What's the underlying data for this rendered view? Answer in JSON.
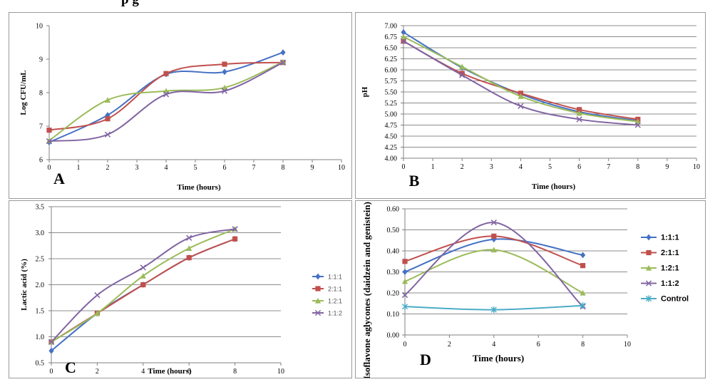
{
  "header": {
    "text": "p                                                        g"
  },
  "colors": {
    "s1": "#4471c4",
    "s2": "#c0504d",
    "s3": "#9bbb59",
    "s4": "#8064a2",
    "s5": "#4bacc6"
  },
  "chart_data": [
    {
      "type": "line",
      "letter": "A",
      "title": "",
      "xlabel": "Time (hours)",
      "ylabel": "Log CFU/mL",
      "xlim": [
        0,
        10
      ],
      "ylim": [
        6,
        10
      ],
      "xticks": [
        "0",
        "1",
        "2",
        "3",
        "4",
        "5",
        "6",
        "7",
        "8",
        "9",
        "10"
      ],
      "yticks": [
        "6",
        "7",
        "8",
        "9",
        "10"
      ],
      "grid": false,
      "legend": "none",
      "series": [
        {
          "color": "#4471c4",
          "marker": "diamond",
          "x": [
            0,
            2,
            4,
            6,
            8
          ],
          "y": [
            6.52,
            7.33,
            8.55,
            8.62,
            9.2
          ]
        },
        {
          "color": "#c0504d",
          "marker": "square",
          "x": [
            0,
            2,
            4,
            6,
            8
          ],
          "y": [
            6.88,
            7.22,
            8.57,
            8.85,
            8.9
          ]
        },
        {
          "color": "#9bbb59",
          "marker": "triangle",
          "x": [
            0,
            2,
            4,
            6,
            8
          ],
          "y": [
            6.57,
            7.78,
            8.05,
            8.15,
            8.92
          ]
        },
        {
          "color": "#8064a2",
          "marker": "x",
          "x": [
            0,
            2,
            4,
            6,
            8
          ],
          "y": [
            6.55,
            6.75,
            7.95,
            8.05,
            8.9
          ]
        }
      ]
    },
    {
      "type": "line",
      "letter": "B",
      "title": "",
      "xlabel": "Time (hours)",
      "ylabel": "pH",
      "xlim": [
        0,
        10
      ],
      "ylim": [
        4.0,
        7.0
      ],
      "xticks": [
        "0",
        "1",
        "2",
        "3",
        "4",
        "5",
        "6",
        "7",
        "8",
        "9",
        "10"
      ],
      "yticks": [
        "4.00",
        "4.25",
        "4.50",
        "4.75",
        "5.00",
        "5.25",
        "5.50",
        "5.75",
        "6.00",
        "6.25",
        "6.50",
        "6.75",
        "7.00"
      ],
      "grid": true,
      "legend": "none",
      "series": [
        {
          "color": "#4471c4",
          "marker": "diamond",
          "x": [
            0,
            2,
            4,
            6,
            8
          ],
          "y": [
            6.85,
            6.05,
            5.45,
            5.05,
            4.85
          ]
        },
        {
          "color": "#c0504d",
          "marker": "square",
          "x": [
            0,
            2,
            4,
            6,
            8
          ],
          "y": [
            6.65,
            5.92,
            5.47,
            5.1,
            4.88
          ]
        },
        {
          "color": "#9bbb59",
          "marker": "triangle",
          "x": [
            0,
            2,
            4,
            6,
            8
          ],
          "y": [
            6.75,
            6.07,
            5.4,
            5.02,
            4.83
          ]
        },
        {
          "color": "#8064a2",
          "marker": "x",
          "x": [
            0,
            2,
            4,
            6,
            8
          ],
          "y": [
            6.65,
            5.88,
            5.18,
            4.88,
            4.75
          ]
        }
      ]
    },
    {
      "type": "line",
      "letter": "C",
      "title": "",
      "xlabel": "Time (hours)",
      "ylabel": "Lactic acid (%)",
      "xlim": [
        0,
        10
      ],
      "ylim": [
        0.5,
        3.5
      ],
      "xticks": [
        "0",
        "2",
        "4",
        "6",
        "8",
        "10"
      ],
      "yticks": [
        "0.5",
        "1.0",
        "1.5",
        "2.0",
        "2.5",
        "3.0",
        "3.5"
      ],
      "grid": true,
      "legend": "right",
      "series": [
        {
          "name": "1:1:1",
          "color": "#4471c4",
          "marker": "diamond",
          "x": [
            0,
            2,
            4,
            6,
            8
          ],
          "y": [
            0.73,
            1.45,
            2.0,
            2.52,
            2.88
          ]
        },
        {
          "name": "2:1:1",
          "color": "#c0504d",
          "marker": "square",
          "x": [
            0,
            2,
            4,
            6,
            8
          ],
          "y": [
            0.9,
            1.45,
            2.0,
            2.52,
            2.88
          ]
        },
        {
          "name": "1:2:1",
          "color": "#9bbb59",
          "marker": "triangle",
          "x": [
            0,
            2,
            4,
            6,
            8
          ],
          "y": [
            0.9,
            1.45,
            2.17,
            2.7,
            3.07
          ]
        },
        {
          "name": "1:1:2",
          "color": "#8064a2",
          "marker": "x",
          "x": [
            0,
            2,
            4,
            6,
            8
          ],
          "y": [
            0.9,
            1.8,
            2.33,
            2.9,
            3.07
          ]
        }
      ]
    },
    {
      "type": "line",
      "letter": "D",
      "title": "",
      "xlabel": "Time (hours)",
      "ylabel": "Isoflavone aglycones (daidzein and genistein) (mg/mL)",
      "xlim": [
        0,
        10
      ],
      "ylim": [
        0,
        0.6
      ],
      "xticks": [
        "0",
        "2",
        "4",
        "6",
        "8",
        "10"
      ],
      "yticks": [
        "0.00",
        "0.10",
        "0.20",
        "0.30",
        "0.40",
        "0.50",
        "0.60"
      ],
      "grid": true,
      "legend": "right",
      "series": [
        {
          "name": "1:1:1",
          "color": "#4471c4",
          "marker": "diamond",
          "x": [
            0,
            4,
            8
          ],
          "y": [
            0.3,
            0.455,
            0.38
          ]
        },
        {
          "name": "2:1:1",
          "color": "#c0504d",
          "marker": "square",
          "x": [
            0,
            4,
            8
          ],
          "y": [
            0.35,
            0.47,
            0.33
          ]
        },
        {
          "name": "1:2:1",
          "color": "#9bbb59",
          "marker": "triangle",
          "x": [
            0,
            4,
            8
          ],
          "y": [
            0.255,
            0.405,
            0.2
          ]
        },
        {
          "name": "1:1:2",
          "color": "#8064a2",
          "marker": "x",
          "x": [
            0,
            4,
            8
          ],
          "y": [
            0.19,
            0.535,
            0.135
          ]
        },
        {
          "name": "Control",
          "color": "#4bacc6",
          "marker": "star",
          "x": [
            0,
            4,
            8
          ],
          "y": [
            0.135,
            0.12,
            0.14
          ]
        }
      ]
    }
  ]
}
